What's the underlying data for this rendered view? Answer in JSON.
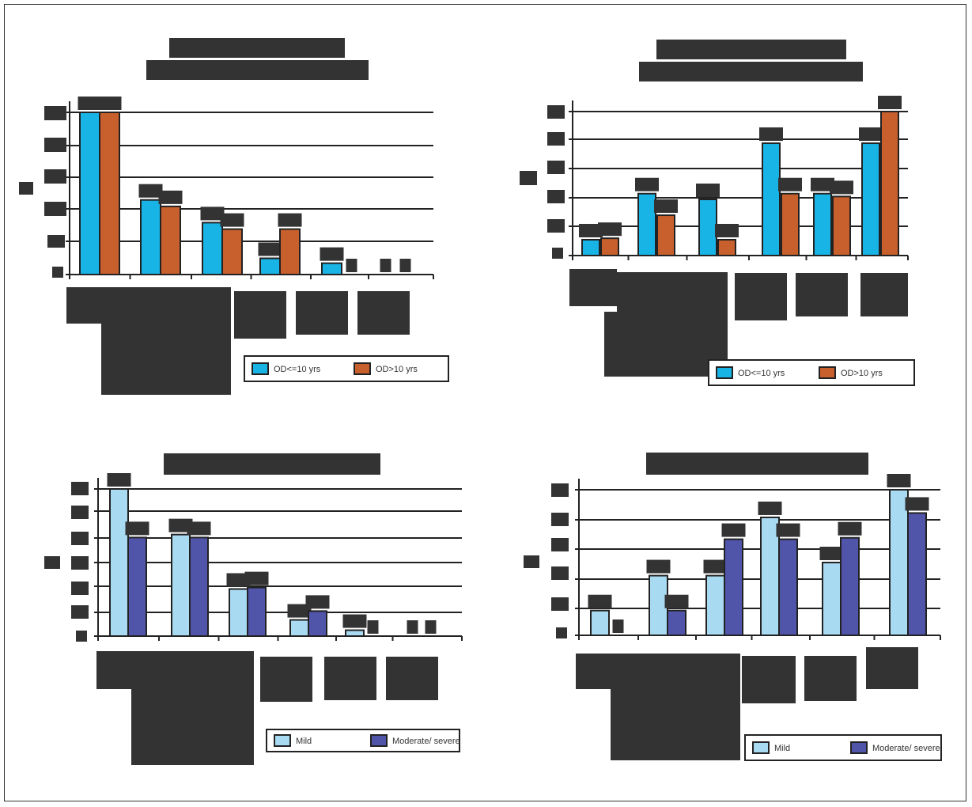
{
  "page": {
    "background": "#ffffff",
    "redaction_color": "#333333"
  },
  "chart_data": [
    {
      "type": "bar",
      "title": "",
      "subtitle": "",
      "xlabel": "",
      "ylabel": "",
      "categories": [
        "",
        "",
        "",
        "",
        "",
        ""
      ],
      "series": [
        {
          "name": "OD<=10 yrs",
          "color": "#19b4e6",
          "values": [
            100,
            46,
            32,
            10,
            7,
            0
          ]
        },
        {
          "name": "OD>10 yrs",
          "color": "#c8602d",
          "values": [
            100,
            42,
            28,
            28,
            0,
            0
          ]
        }
      ],
      "ylim": [
        0,
        100
      ],
      "grid": true,
      "legend": "bottom-right"
    },
    {
      "type": "bar",
      "title": "",
      "subtitle": "",
      "xlabel": "",
      "ylabel": "",
      "categories": [
        "",
        "",
        "",
        "",
        "",
        ""
      ],
      "series": [
        {
          "name": "OD<=10 yrs",
          "color": "#19b4e6",
          "values": [
            11,
            43,
            39,
            78,
            43,
            78
          ]
        },
        {
          "name": "OD>10 yrs",
          "color": "#c8602d",
          "values": [
            12,
            28,
            11,
            43,
            41,
            100
          ]
        }
      ],
      "ylim": [
        0,
        100
      ],
      "grid": true,
      "legend": "bottom-right"
    },
    {
      "type": "bar",
      "title": "",
      "subtitle": "",
      "xlabel": "",
      "ylabel": "",
      "categories": [
        "",
        "",
        "",
        "",
        "",
        ""
      ],
      "series": [
        {
          "name": "Mild",
          "color": "#a8daf2",
          "values": [
            100,
            69,
            32,
            11,
            4,
            0
          ]
        },
        {
          "name": "Moderate/ severe",
          "color": "#5055aa",
          "values": [
            67,
            67,
            33,
            17,
            0,
            0
          ]
        }
      ],
      "ylim": [
        0,
        100
      ],
      "grid": true,
      "legend": "bottom-right"
    },
    {
      "type": "bar",
      "title": "",
      "subtitle": "",
      "xlabel": "",
      "ylabel": "",
      "categories": [
        "",
        "",
        "",
        "",
        "",
        ""
      ],
      "series": [
        {
          "name": "Mild",
          "color": "#a8daf2",
          "values": [
            17,
            41,
            41,
            81,
            50,
            100
          ]
        },
        {
          "name": "Moderate/ severe",
          "color": "#5055aa",
          "values": [
            0,
            17,
            66,
            66,
            67,
            84
          ]
        }
      ],
      "ylim": [
        0,
        100
      ],
      "grid": true,
      "legend": "bottom-right"
    }
  ]
}
